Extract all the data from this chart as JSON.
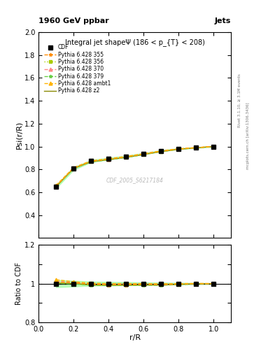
{
  "title_top": "1960 GeV ppbar",
  "title_top_right": "Jets",
  "title_main": "Integral jet shapeΨ (186 < p_{T} < 208)",
  "xlabel": "r/R",
  "ylabel_main": "Psi(r/R)",
  "ylabel_ratio": "Ratio to CDF",
  "watermark": "CDF_2005_S6217184",
  "right_label1": "Rivet 3.1.10, ≥ 3.1M events",
  "right_label2": "mcplots.cern.ch [arXiv:1306.3436]",
  "x_data": [
    0.1,
    0.2,
    0.3,
    0.4,
    0.5,
    0.6,
    0.7,
    0.8,
    0.9,
    1.0
  ],
  "cdf_y": [
    0.647,
    0.807,
    0.873,
    0.893,
    0.913,
    0.937,
    0.963,
    0.98,
    0.99,
    1.0
  ],
  "cdf_err": [
    0.012,
    0.012,
    0.009,
    0.008,
    0.007,
    0.006,
    0.005,
    0.004,
    0.003,
    0.002
  ],
  "pythia_355_y": [
    0.652,
    0.81,
    0.87,
    0.888,
    0.908,
    0.933,
    0.958,
    0.977,
    0.99,
    1.0
  ],
  "pythia_356_y": [
    0.65,
    0.808,
    0.868,
    0.886,
    0.906,
    0.931,
    0.957,
    0.976,
    0.989,
    1.0
  ],
  "pythia_370_y": [
    0.655,
    0.812,
    0.872,
    0.89,
    0.91,
    0.935,
    0.96,
    0.978,
    0.99,
    1.0
  ],
  "pythia_379_y": [
    0.648,
    0.806,
    0.866,
    0.884,
    0.904,
    0.929,
    0.955,
    0.975,
    0.988,
    1.0
  ],
  "pythia_ambt1_y": [
    0.66,
    0.815,
    0.875,
    0.893,
    0.913,
    0.937,
    0.962,
    0.98,
    0.991,
    1.0
  ],
  "pythia_z2_y": [
    0.649,
    0.807,
    0.867,
    0.885,
    0.905,
    0.93,
    0.956,
    0.976,
    0.989,
    1.0
  ],
  "color_355": "#FF8C00",
  "color_356": "#AACC00",
  "color_370": "#FF8888",
  "color_379": "#66CC44",
  "color_ambt1": "#FFB300",
  "color_z2": "#888800",
  "color_cdf": "#000000",
  "band_color": "#AAFFAA",
  "ylim_main": [
    0.2,
    2.0
  ],
  "ylim_ratio": [
    0.8,
    1.2
  ],
  "xlim": [
    0.0,
    1.1
  ],
  "yticks_main": [
    0.4,
    0.6,
    0.8,
    1.0,
    1.2,
    1.4,
    1.6,
    1.8,
    2.0
  ],
  "yticks_ratio": [
    0.8,
    0.9,
    1.0,
    1.1,
    1.2
  ]
}
